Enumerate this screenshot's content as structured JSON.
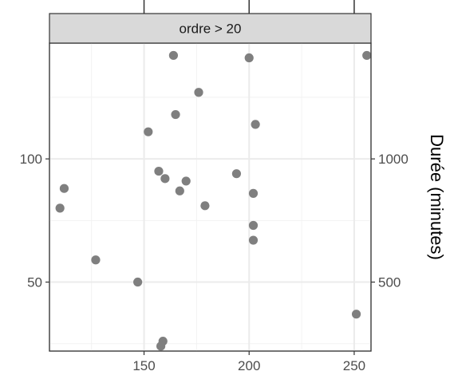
{
  "chart_data": {
    "type": "scatter",
    "facet_label": "ordre > 20",
    "xlabel": "",
    "ylabel": "",
    "y2label": "Durée (minutes)",
    "xlim": [
      105,
      258
    ],
    "ylim": [
      22,
      147
    ],
    "x_ticks": [
      150,
      200,
      250
    ],
    "y_ticks": [
      50,
      100
    ],
    "y2_ticks": [
      {
        "label": "500",
        "at": 50
      },
      {
        "label": "1000",
        "at": 100
      }
    ],
    "grid": true,
    "point_color": "#7f7f7f",
    "points": [
      {
        "x": 164,
        "y": 142
      },
      {
        "x": 200,
        "y": 141
      },
      {
        "x": 256,
        "y": 142
      },
      {
        "x": 176,
        "y": 127
      },
      {
        "x": 165,
        "y": 118
      },
      {
        "x": 152,
        "y": 111
      },
      {
        "x": 203,
        "y": 114
      },
      {
        "x": 157,
        "y": 95
      },
      {
        "x": 160,
        "y": 92
      },
      {
        "x": 170,
        "y": 91
      },
      {
        "x": 194,
        "y": 94
      },
      {
        "x": 167,
        "y": 87
      },
      {
        "x": 202,
        "y": 86
      },
      {
        "x": 112,
        "y": 88
      },
      {
        "x": 110,
        "y": 80
      },
      {
        "x": 179,
        "y": 81
      },
      {
        "x": 202,
        "y": 73
      },
      {
        "x": 202,
        "y": 67
      },
      {
        "x": 127,
        "y": 59
      },
      {
        "x": 147,
        "y": 50
      },
      {
        "x": 251,
        "y": 37
      },
      {
        "x": 159,
        "y": 26
      },
      {
        "x": 158,
        "y": 24
      }
    ]
  }
}
